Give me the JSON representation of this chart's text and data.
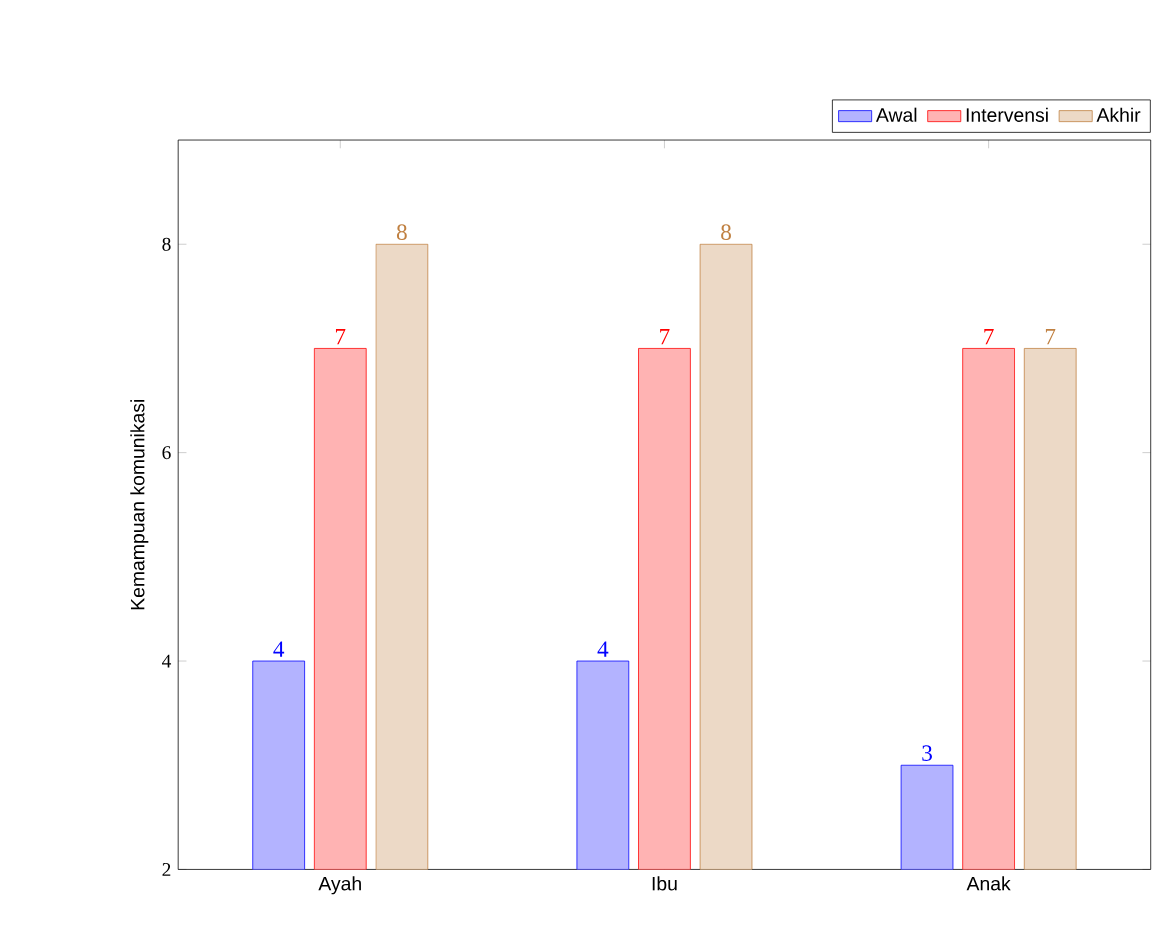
{
  "chart_data": {
    "type": "bar",
    "ylabel": "Kemampuan komunikasi",
    "categories": [
      "Ayah",
      "Ibu",
      "Anak"
    ],
    "series": [
      {
        "name": "Awal",
        "color": "#b3b3ff",
        "values": [
          4,
          4,
          3
        ]
      },
      {
        "name": "Intervensi",
        "color": "#ffb3b3",
        "values": [
          7,
          7,
          7
        ]
      },
      {
        "name": "Akhir",
        "color": "#ecd9c6",
        "values": [
          8,
          8,
          7
        ]
      }
    ],
    "ylim": [
      2,
      9
    ],
    "yticks": [
      2,
      4,
      6,
      8
    ],
    "data_labels": true,
    "legend": "top right"
  }
}
